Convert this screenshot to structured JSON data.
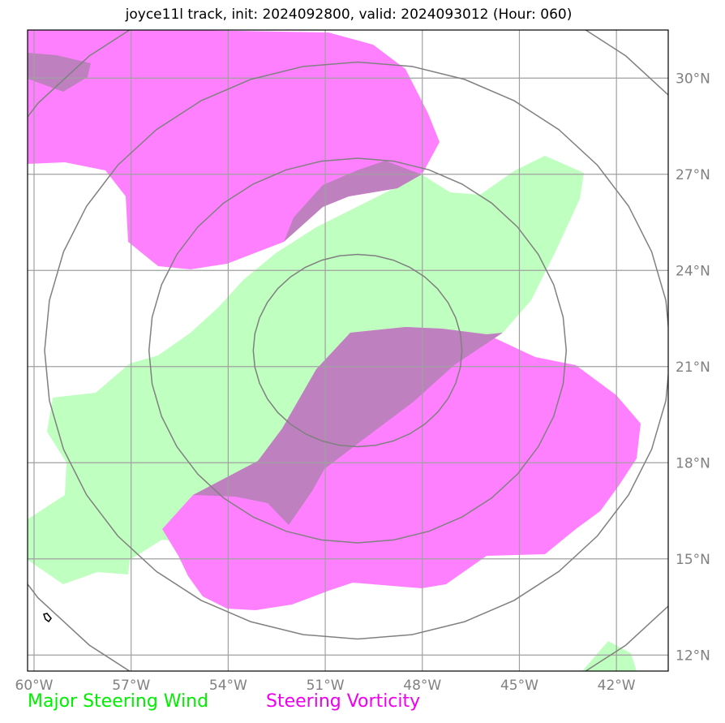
{
  "title": "joyce11l track, init: 2024092800, valid: 2024093012 (Hour: 060)",
  "map": {
    "lon_range": [
      -60.2,
      -40.4
    ],
    "lat_range": [
      11.5,
      31.5
    ],
    "lon_ticks": [
      {
        "value": -60,
        "label": "60°W"
      },
      {
        "value": -57,
        "label": "57°W"
      },
      {
        "value": -54,
        "label": "54°W"
      },
      {
        "value": -51,
        "label": "51°W"
      },
      {
        "value": -48,
        "label": "48°W"
      },
      {
        "value": -45,
        "label": "45°W"
      },
      {
        "value": -42,
        "label": "42°W"
      }
    ],
    "lat_ticks": [
      {
        "value": 12,
        "label": "12°N"
      },
      {
        "value": 15,
        "label": "15°N"
      },
      {
        "value": 18,
        "label": "18°N"
      },
      {
        "value": 21,
        "label": "21°N"
      },
      {
        "value": 24,
        "label": "24°N"
      },
      {
        "value": 27,
        "label": "27°N"
      },
      {
        "value": 30,
        "label": "30°N"
      }
    ],
    "range_ring_center": {
      "lon": -50.0,
      "lat": 21.5
    },
    "range_ring_radii_deg": [
      3,
      6,
      9,
      12
    ],
    "colors": {
      "wind": "#bfffbf",
      "vorticity": "#ff80ff",
      "overlap": "#bf80bf",
      "grid": "#a0a0a0",
      "rings": "#808080"
    }
  },
  "legend": {
    "wind": {
      "label": "Major Steering Wind",
      "color": "#00ee00"
    },
    "vorticity": {
      "label": "Steering Vorticity",
      "color": "#ee00ee"
    }
  }
}
